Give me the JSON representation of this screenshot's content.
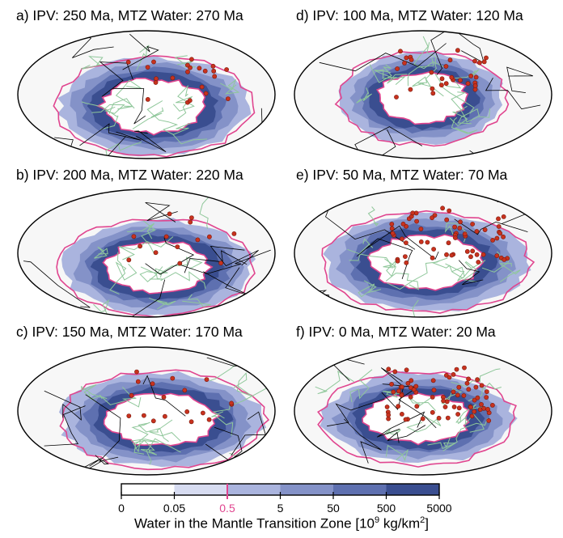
{
  "panels": [
    {
      "id": "a",
      "title": "a) IPV: 250 Ma, MTZ Water: 270 Ma"
    },
    {
      "id": "b",
      "title": "b) IPV: 200 Ma, MTZ Water: 220 Ma"
    },
    {
      "id": "c",
      "title": "c) IPV: 150 Ma, MTZ Water: 170 Ma"
    },
    {
      "id": "d",
      "title": "d) IPV: 100 Ma, MTZ Water: 120 Ma"
    },
    {
      "id": "e",
      "title": "e) IPV: 50 Ma, MTZ Water: 70 Ma"
    },
    {
      "id": "f",
      "title": "f) IPV: 0 Ma, MTZ Water: 20 Ma"
    }
  ],
  "colorbar": {
    "label_prefix": "Water in the Mantle Transition Zone [10",
    "label_exp1": "9",
    "label_mid": " kg/km",
    "label_exp2": "2",
    "label_suffix": "]",
    "ticks": [
      "0",
      "0.05",
      "0.5",
      "5",
      "50",
      "500",
      "5000"
    ],
    "colors": [
      "#ffffff",
      "#d7dcf1",
      "#aab4de",
      "#8492c8",
      "#5e70b0",
      "#3a4e90"
    ],
    "highlight_tick": "0.5",
    "highlight_color": "#e0458f"
  },
  "chart_data": {
    "type": "heatmap",
    "title": "Water in the Mantle Transition Zone",
    "colorbar_ticks": [
      0,
      0.05,
      0.5,
      5,
      50,
      500,
      5000
    ],
    "colorbar_units": "10^9 kg/km^2",
    "contour_highlight_value": 0.5,
    "projection": "Mollweide (global)",
    "legend_symbols": {
      "ipv_sites": "#c8321e",
      "plate_boundaries": "#000000",
      "continent_outlines": "#8fc79a",
      "mtz_contour": "#e0458f"
    },
    "panels": [
      {
        "id": "a",
        "ipv_age_ma": 250,
        "mtz_water_age_ma": 270
      },
      {
        "id": "b",
        "ipv_age_ma": 200,
        "mtz_water_age_ma": 220
      },
      {
        "id": "c",
        "ipv_age_ma": 150,
        "mtz_water_age_ma": 170
      },
      {
        "id": "d",
        "ipv_age_ma": 100,
        "mtz_water_age_ma": 120
      },
      {
        "id": "e",
        "ipv_age_ma": 50,
        "mtz_water_age_ma": 70
      },
      {
        "id": "f",
        "ipv_age_ma": 0,
        "mtz_water_age_ma": 20
      }
    ]
  }
}
